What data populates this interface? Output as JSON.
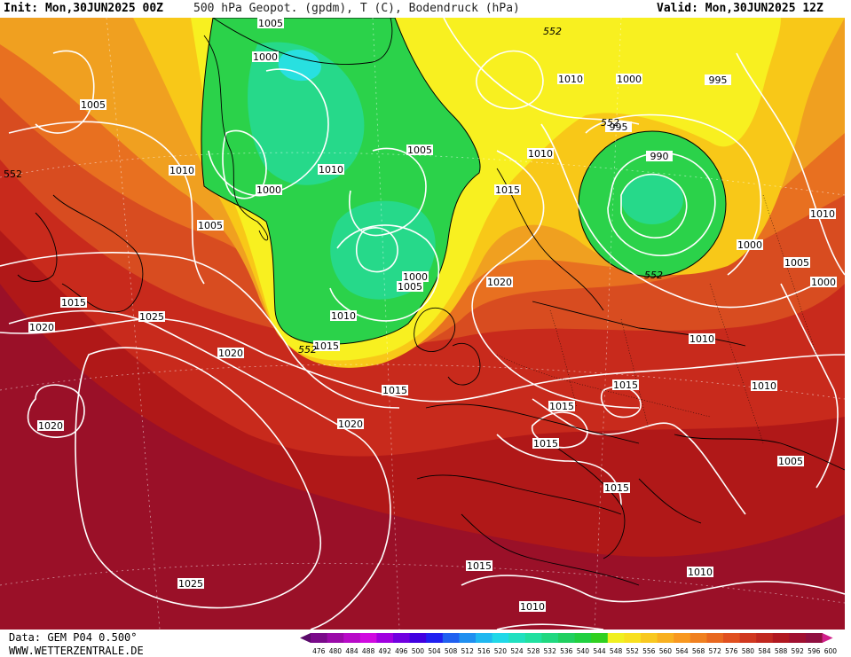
{
  "header": {
    "init": "Init: Mon,30JUN2025 00Z",
    "title": "500 hPa Geopot. (gpdm), T (C), Bodendruck (hPa)",
    "valid": "Valid: Mon,30JUN2025 12Z"
  },
  "footer": {
    "data_source": "Data: GEM P04 0.500°",
    "website": "WWW.WETTERZENTRALE.DE"
  },
  "legend": {
    "values": [
      "476",
      "480",
      "484",
      "488",
      "492",
      "496",
      "500",
      "504",
      "508",
      "512",
      "516",
      "520",
      "524",
      "528",
      "532",
      "536",
      "540",
      "544",
      "548",
      "552",
      "556",
      "560",
      "564",
      "568",
      "572",
      "576",
      "580",
      "584",
      "588",
      "592",
      "596",
      "600"
    ],
    "colors": [
      "#5a0a6a",
      "#7a0a8a",
      "#9a0aa8",
      "#b80ac8",
      "#d00ae0",
      "#a000e0",
      "#7000e0",
      "#4000e0",
      "#2020f0",
      "#2060f0",
      "#2090f0",
      "#20b8f0",
      "#20d8e8",
      "#20e0c0",
      "#20e0a0",
      "#20d880",
      "#20d060",
      "#20d040",
      "#30d020",
      "#f0f020",
      "#f8e020",
      "#f8c820",
      "#f8b020",
      "#f89820",
      "#f08020",
      "#e86820",
      "#e05020",
      "#d03820",
      "#c02820",
      "#b01820",
      "#a01030",
      "#901040",
      "#d0208a"
    ]
  },
  "map": {
    "colors": {
      "green": "#2bd24a",
      "green_light": "#26d98a",
      "cyan": "#28e0e0",
      "yellow": "#f8f020",
      "gold": "#f8c818",
      "orange": "#f0a020",
      "orange_red": "#e87020",
      "red_orange": "#d84c20",
      "red": "#c82a1c",
      "dark_red": "#b01818",
      "crimson": "#9a1028"
    },
    "isobar_labels": [
      "1005",
      "1000",
      "1005",
      "1010",
      "1000",
      "1010",
      "1005",
      "1005",
      "1000",
      "1005",
      "1010",
      "1015",
      "1015",
      "1020",
      "1020",
      "1025",
      "1020",
      "1020",
      "1020",
      "1025",
      "1015",
      "1015",
      "1010",
      "1010",
      "1015",
      "1015",
      "1015",
      "1015",
      "1010",
      "1010",
      "1010",
      "1000",
      "995",
      "990",
      "1000",
      "1005",
      "1000",
      "1010",
      "1010",
      "1005",
      "995",
      "1000",
      "1015",
      "552",
      "552",
      "552",
      "552",
      "552"
    ]
  }
}
